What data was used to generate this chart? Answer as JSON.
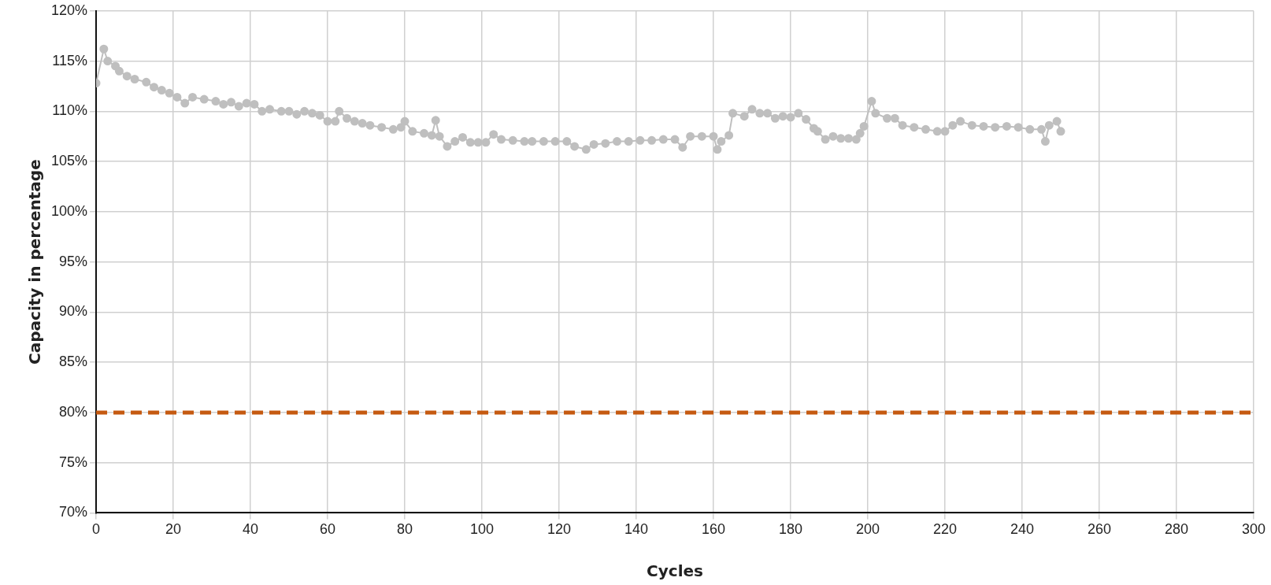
{
  "chart_data": {
    "type": "line",
    "xlabel": "Cycles",
    "ylabel": "Capacity in percentage",
    "xlim": [
      0,
      300
    ],
    "xticks": [
      0,
      20,
      40,
      60,
      80,
      100,
      120,
      140,
      160,
      180,
      200,
      220,
      240,
      260,
      280,
      300
    ],
    "ylim": [
      70,
      120
    ],
    "yticks": [
      {
        "value": 70,
        "label": "70%"
      },
      {
        "value": 75,
        "label": "75%"
      },
      {
        "value": 80,
        "label": "80%"
      },
      {
        "value": 85,
        "label": "85%"
      },
      {
        "value": 90,
        "label": "90%"
      },
      {
        "value": 95,
        "label": "95%"
      },
      {
        "value": 100,
        "label": "100%"
      },
      {
        "value": 105,
        "label": "105%"
      },
      {
        "value": 110,
        "label": "110%"
      },
      {
        "value": 115,
        "label": "115%"
      },
      {
        "value": 120,
        "label": "120%"
      }
    ],
    "grid": true,
    "legend": false,
    "marker": "circle",
    "line_style": "solid",
    "series": [
      {
        "color": "#bfbfbf",
        "x": [
          0,
          2,
          3,
          5,
          6,
          8,
          10,
          13,
          15,
          17,
          19,
          21,
          23,
          25,
          28,
          31,
          33,
          35,
          37,
          39,
          41,
          43,
          45,
          48,
          50,
          52,
          54,
          56,
          58,
          60,
          62,
          63,
          65,
          67,
          69,
          71,
          74,
          77,
          79,
          80,
          82,
          85,
          87,
          88,
          89,
          91,
          93,
          95,
          97,
          99,
          101,
          103,
          105,
          108,
          111,
          113,
          116,
          119,
          122,
          124,
          127,
          129,
          132,
          135,
          138,
          141,
          144,
          147,
          150,
          152,
          154,
          157,
          160,
          161,
          162,
          164,
          165,
          168,
          170,
          172,
          174,
          176,
          178,
          180,
          182,
          184,
          186,
          187,
          189,
          191,
          193,
          195,
          197,
          198,
          199,
          201,
          202,
          205,
          207,
          209,
          212,
          215,
          218,
          220,
          222,
          224,
          227,
          230,
          233,
          236,
          239,
          242,
          245,
          246,
          247,
          249,
          250
        ],
        "values": [
          112.8,
          116.2,
          115,
          114.5,
          114,
          113.5,
          113.2,
          112.9,
          112.4,
          112.1,
          111.8,
          111.4,
          110.8,
          111.4,
          111.2,
          111,
          110.7,
          110.9,
          110.5,
          110.8,
          110.7,
          110,
          110.2,
          110,
          110,
          109.7,
          110,
          109.8,
          109.6,
          109,
          109,
          110,
          109.3,
          109,
          108.8,
          108.6,
          108.4,
          108.2,
          108.4,
          109,
          108,
          107.8,
          107.6,
          109.1,
          107.5,
          106.5,
          107,
          107.4,
          106.9,
          106.9,
          106.9,
          107.7,
          107.2,
          107.1,
          107,
          107,
          107,
          107,
          107,
          106.5,
          106.2,
          106.7,
          106.8,
          107,
          107,
          107.1,
          107.1,
          107.2,
          107.2,
          106.4,
          107.5,
          107.5,
          107.5,
          106.2,
          107,
          107.6,
          109.8,
          109.5,
          110.2,
          109.8,
          109.8,
          109.3,
          109.5,
          109.4,
          109.8,
          109.2,
          108.3,
          108,
          107.2,
          107.5,
          107.3,
          107.3,
          107.2,
          107.8,
          108.5,
          111,
          109.8,
          109.3,
          109.3,
          108.6,
          108.4,
          108.2,
          108,
          108,
          108.6,
          109,
          108.6,
          108.5,
          108.4,
          108.5,
          108.4,
          108.2,
          108.2,
          107,
          108.6,
          109,
          108
        ]
      }
    ],
    "ref_lines": [
      {
        "axis": "y",
        "value": 80,
        "color": "#c55a11",
        "line_style": "dashed"
      }
    ]
  }
}
